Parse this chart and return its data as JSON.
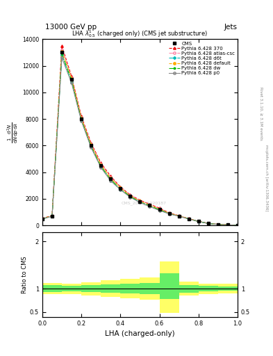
{
  "title_top": "13000 GeV pp",
  "title_right": "Jets",
  "plot_title": "LHA $\\lambda^1_{0.5}$ (charged only) (CMS jet substructure)",
  "xlabel": "LHA (charged-only)",
  "ylabel_ratio": "Ratio to CMS",
  "right_label": "mcplots.cern.ch [arXiv:1306.3436]",
  "right_label2": "Rivet 3.1.10, ≥ 3.1M events",
  "watermark": "CMS_2021_I1920187",
  "xlim": [
    0,
    1
  ],
  "ylim_main": [
    0,
    14000
  ],
  "x_data": [
    0.0,
    0.05,
    0.1,
    0.15,
    0.2,
    0.25,
    0.3,
    0.35,
    0.4,
    0.45,
    0.5,
    0.55,
    0.6,
    0.65,
    0.7,
    0.75,
    0.8,
    0.85,
    0.9,
    0.95,
    1.0
  ],
  "cms_y": [
    500,
    700,
    13000,
    11000,
    8000,
    6000,
    4500,
    3500,
    2800,
    2200,
    1800,
    1500,
    1200,
    900,
    700,
    500,
    300,
    150,
    80,
    40,
    10
  ],
  "py370_y": [
    520,
    750,
    13500,
    11200,
    8200,
    6200,
    4700,
    3700,
    2900,
    2300,
    1900,
    1600,
    1300,
    950,
    730,
    510,
    310,
    155,
    82,
    42,
    11
  ],
  "py_atlas_y": [
    510,
    720,
    13200,
    11100,
    8100,
    6100,
    4600,
    3600,
    2850,
    2250,
    1850,
    1550,
    1250,
    920,
    715,
    505,
    305,
    152,
    81,
    41,
    10
  ],
  "py_d6t_y": [
    490,
    690,
    12800,
    10800,
    7900,
    5900,
    4400,
    3400,
    2700,
    2150,
    1750,
    1450,
    1150,
    880,
    690,
    490,
    295,
    148,
    78,
    39,
    10
  ],
  "py_default_y": [
    505,
    710,
    13100,
    11050,
    8050,
    6050,
    4550,
    3550,
    2820,
    2220,
    1820,
    1520,
    1220,
    910,
    710,
    500,
    300,
    150,
    80,
    40,
    10
  ],
  "py_dw_y": [
    495,
    700,
    12900,
    10900,
    7950,
    5950,
    4450,
    3450,
    2750,
    2180,
    1780,
    1480,
    1180,
    890,
    700,
    495,
    298,
    149,
    79,
    39,
    10
  ],
  "py_p0_y": [
    485,
    680,
    12600,
    10700,
    7850,
    5850,
    4350,
    3350,
    2680,
    2120,
    1720,
    1420,
    1120,
    870,
    685,
    485,
    292,
    146,
    77,
    38,
    10
  ],
  "colors": {
    "cms": "#000000",
    "py370": "#ee0000",
    "py_atlas": "#ff88aa",
    "py_d6t": "#00bbbb",
    "py_default": "#ffaa00",
    "py_dw": "#00bb00",
    "py_p0": "#888888"
  },
  "ratio_green_x": [
    0.0,
    0.1,
    0.2,
    0.3,
    0.4,
    0.5,
    0.6,
    0.7,
    0.8,
    0.9,
    1.0
  ],
  "ratio_green_lo": [
    0.93,
    0.94,
    0.93,
    0.91,
    0.9,
    0.88,
    0.78,
    0.92,
    0.94,
    0.95,
    0.95
  ],
  "ratio_green_hi": [
    1.07,
    1.06,
    1.07,
    1.09,
    1.1,
    1.12,
    1.32,
    1.08,
    1.06,
    1.05,
    1.05
  ],
  "ratio_yellow_x": [
    0.0,
    0.1,
    0.2,
    0.3,
    0.4,
    0.5,
    0.6,
    0.7,
    0.8,
    0.9,
    1.0
  ],
  "ratio_yellow_lo": [
    0.88,
    0.89,
    0.86,
    0.82,
    0.79,
    0.76,
    0.48,
    0.85,
    0.89,
    0.9,
    0.9
  ],
  "ratio_yellow_hi": [
    1.12,
    1.11,
    1.14,
    1.18,
    1.21,
    1.24,
    1.58,
    1.15,
    1.11,
    1.1,
    1.1
  ]
}
